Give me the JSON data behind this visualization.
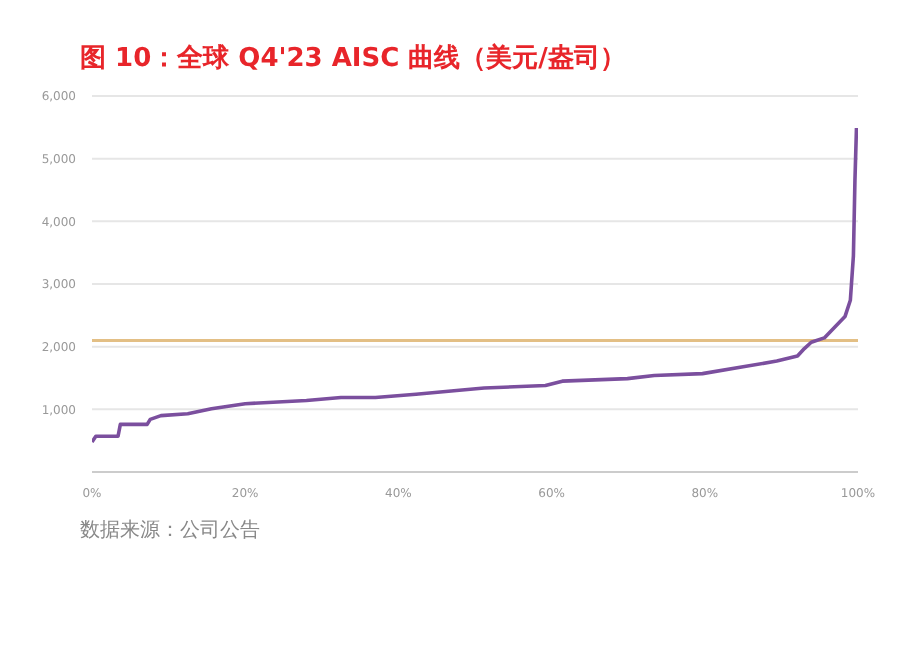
{
  "chart_data": {
    "type": "line",
    "title": "图 10：全球 Q4'23 AISC 曲线（美元/盎司）",
    "annotations": [
      "数据来源：公司公告"
    ],
    "x": [
      0,
      0.5,
      3.4,
      3.7,
      7.2,
      7.6,
      9.0,
      12.5,
      15.6,
      20,
      28,
      32.5,
      37,
      42.3,
      47.6,
      51.2,
      59.2,
      61.4,
      69.9,
      73.4,
      79.7,
      85,
      89.4,
      92.1,
      93,
      93.9,
      95.6,
      98.3,
      99.0,
      99.4,
      99.6,
      99.8
    ],
    "series": [
      {
        "color": "#7b4f9e",
        "values": [
          480,
          570,
          570,
          760,
          760,
          840,
          900,
          930,
          1010,
          1090,
          1140,
          1190,
          1190,
          1240,
          1300,
          1340,
          1380,
          1450,
          1490,
          1540,
          1570,
          1680,
          1770,
          1850,
          1970,
          2070,
          2140,
          2480,
          2740,
          3450,
          4650,
          5490
        ]
      }
    ],
    "xlim": [
      0,
      100
    ],
    "xticks": [
      {
        "value": 0,
        "label": "0%"
      },
      {
        "value": 20,
        "label": "20%"
      },
      {
        "value": 40,
        "label": "40%"
      },
      {
        "value": 60,
        "label": "60%"
      },
      {
        "value": 80,
        "label": "80%"
      },
      {
        "value": 100,
        "label": "100%"
      }
    ],
    "ylim": [
      0,
      6000
    ],
    "yticks": [
      {
        "value": 1000,
        "label": "1,000"
      },
      {
        "value": 2000,
        "label": "2,000"
      },
      {
        "value": 3000,
        "label": "3,000"
      },
      {
        "value": 4000,
        "label": "4,000"
      },
      {
        "value": 5000,
        "label": "5,000"
      },
      {
        "value": 6000,
        "label": "6,000"
      }
    ],
    "ref_lines": [
      {
        "axis": "y",
        "value": 2100,
        "color": "#e3bf85"
      }
    ],
    "grid": "y",
    "legend": false,
    "marker": "none",
    "line_style": "solid"
  }
}
